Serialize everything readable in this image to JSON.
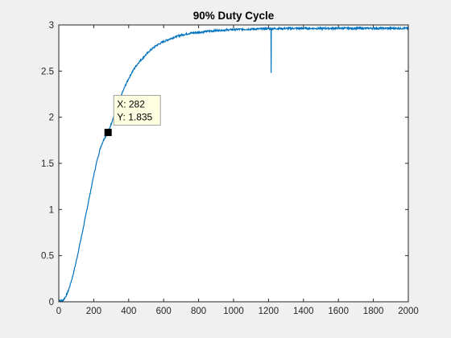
{
  "chart_data": {
    "type": "line",
    "title": "90% Duty Cycle",
    "xlabel": "",
    "ylabel": "",
    "xlim": [
      0,
      2000
    ],
    "ylim": [
      0,
      3
    ],
    "xticks": [
      0,
      200,
      400,
      600,
      800,
      1000,
      1200,
      1400,
      1600,
      1800,
      2000
    ],
    "xtick_labels": [
      "0",
      "200",
      "400",
      "600",
      "800",
      "1000",
      "1200",
      "1400",
      "1600",
      "1800",
      "2000"
    ],
    "yticks": [
      0,
      0.5,
      1,
      1.5,
      2,
      2.5,
      3
    ],
    "ytick_labels": [
      "0",
      "0.5",
      "1",
      "1.5",
      "2",
      "2.5",
      "3"
    ],
    "grid": false,
    "legend": "none",
    "series": [
      {
        "color": "#0072bd",
        "x": [
          0,
          20,
          30,
          40,
          50,
          60,
          80,
          100,
          120,
          140,
          160,
          180,
          200,
          220,
          240,
          260,
          282,
          300,
          320,
          340,
          360,
          380,
          400,
          420,
          440,
          460,
          480,
          500,
          520,
          540,
          560,
          580,
          600,
          650,
          700,
          750,
          800,
          850,
          900,
          950,
          1000,
          1050,
          1100,
          1150,
          1200,
          1214,
          1215,
          1216,
          1217,
          1250,
          1300,
          1400,
          1500,
          1600,
          1700,
          1800,
          1900,
          2000
        ],
        "y": [
          0.02,
          0.01,
          0.03,
          0.06,
          0.1,
          0.15,
          0.28,
          0.44,
          0.62,
          0.8,
          0.99,
          1.18,
          1.37,
          1.54,
          1.68,
          1.77,
          1.835,
          1.93,
          2.04,
          2.15,
          2.25,
          2.34,
          2.42,
          2.49,
          2.55,
          2.6,
          2.64,
          2.68,
          2.72,
          2.75,
          2.78,
          2.8,
          2.82,
          2.86,
          2.89,
          2.91,
          2.92,
          2.93,
          2.94,
          2.945,
          2.95,
          2.953,
          2.955,
          2.957,
          2.96,
          2.96,
          2.48,
          2.96,
          2.96,
          2.96,
          2.962,
          2.963,
          2.963,
          2.964,
          2.964,
          2.964,
          2.964,
          2.964
        ]
      }
    ],
    "datatip": {
      "x": 282,
      "y": 1.835,
      "x_text": "X: 282",
      "y_text": "Y: 1.835"
    }
  }
}
